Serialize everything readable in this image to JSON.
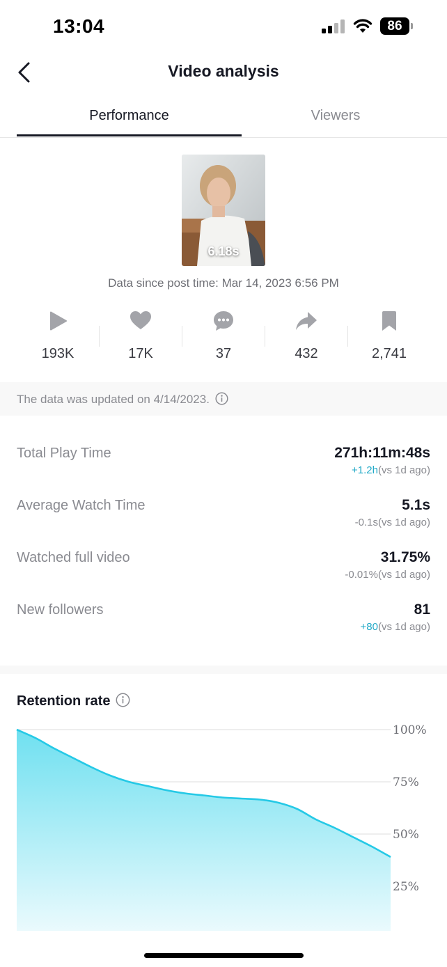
{
  "status_bar": {
    "time": "13:04",
    "battery": "86",
    "icons": [
      "signal-icon",
      "wifi-icon",
      "battery-icon"
    ]
  },
  "header": {
    "title": "Video analysis",
    "back_icon": "chevron-left-icon"
  },
  "tabs": [
    {
      "label": "Performance",
      "active": true
    },
    {
      "label": "Viewers",
      "active": false
    }
  ],
  "video": {
    "duration": "6.18s",
    "data_since": "Data since post time: Mar 14, 2023 6:56 PM"
  },
  "metrics": [
    {
      "icon": "play-icon",
      "value": "193K"
    },
    {
      "icon": "heart-icon",
      "value": "17K"
    },
    {
      "icon": "comment-icon",
      "value": "37"
    },
    {
      "icon": "share-icon",
      "value": "432"
    },
    {
      "icon": "bookmark-icon",
      "value": "2,741"
    }
  ],
  "update_notice": "The data was updated on 4/14/2023.",
  "stats": [
    {
      "label": "Total Play Time",
      "value": "271h:11m:48s",
      "delta": "+1.2h",
      "delta_suffix": "(vs 1d ago)",
      "delta_positive": true
    },
    {
      "label": "Average Watch Time",
      "value": "5.1s",
      "delta": "-0.1s",
      "delta_suffix": "(vs 1d ago)",
      "delta_positive": false
    },
    {
      "label": "Watched full video",
      "value": "31.75%",
      "delta": "-0.01%",
      "delta_suffix": "(vs 1d ago)",
      "delta_positive": false
    },
    {
      "label": "New followers",
      "value": "81",
      "delta": "+80",
      "delta_suffix": "(vs 1d ago)",
      "delta_positive": true
    }
  ],
  "retention": {
    "title": "Retention rate"
  },
  "chart_data": {
    "type": "area",
    "title": "Retention rate",
    "x": [
      0,
      0.05,
      0.1,
      0.15,
      0.2,
      0.25,
      0.3,
      0.35,
      0.4,
      0.45,
      0.5,
      0.55,
      0.6,
      0.65,
      0.7,
      0.75,
      0.8,
      0.85,
      0.9,
      0.95,
      1.0
    ],
    "series": [
      {
        "values": [
          100,
          96,
          91,
          86.5,
          82,
          78,
          75,
          73,
          71,
          69.5,
          68.5,
          67.5,
          67,
          66.5,
          65,
          62,
          57,
          53,
          48.5,
          44,
          39
        ]
      }
    ],
    "yticks": [
      "100%",
      "75%",
      "50%",
      "25%"
    ],
    "ylim": [
      0,
      100
    ],
    "grid": true,
    "colors": {
      "line": "#25c9e6",
      "fill_top": "#6fe0f0",
      "fill_bottom": "#eafafd"
    }
  }
}
